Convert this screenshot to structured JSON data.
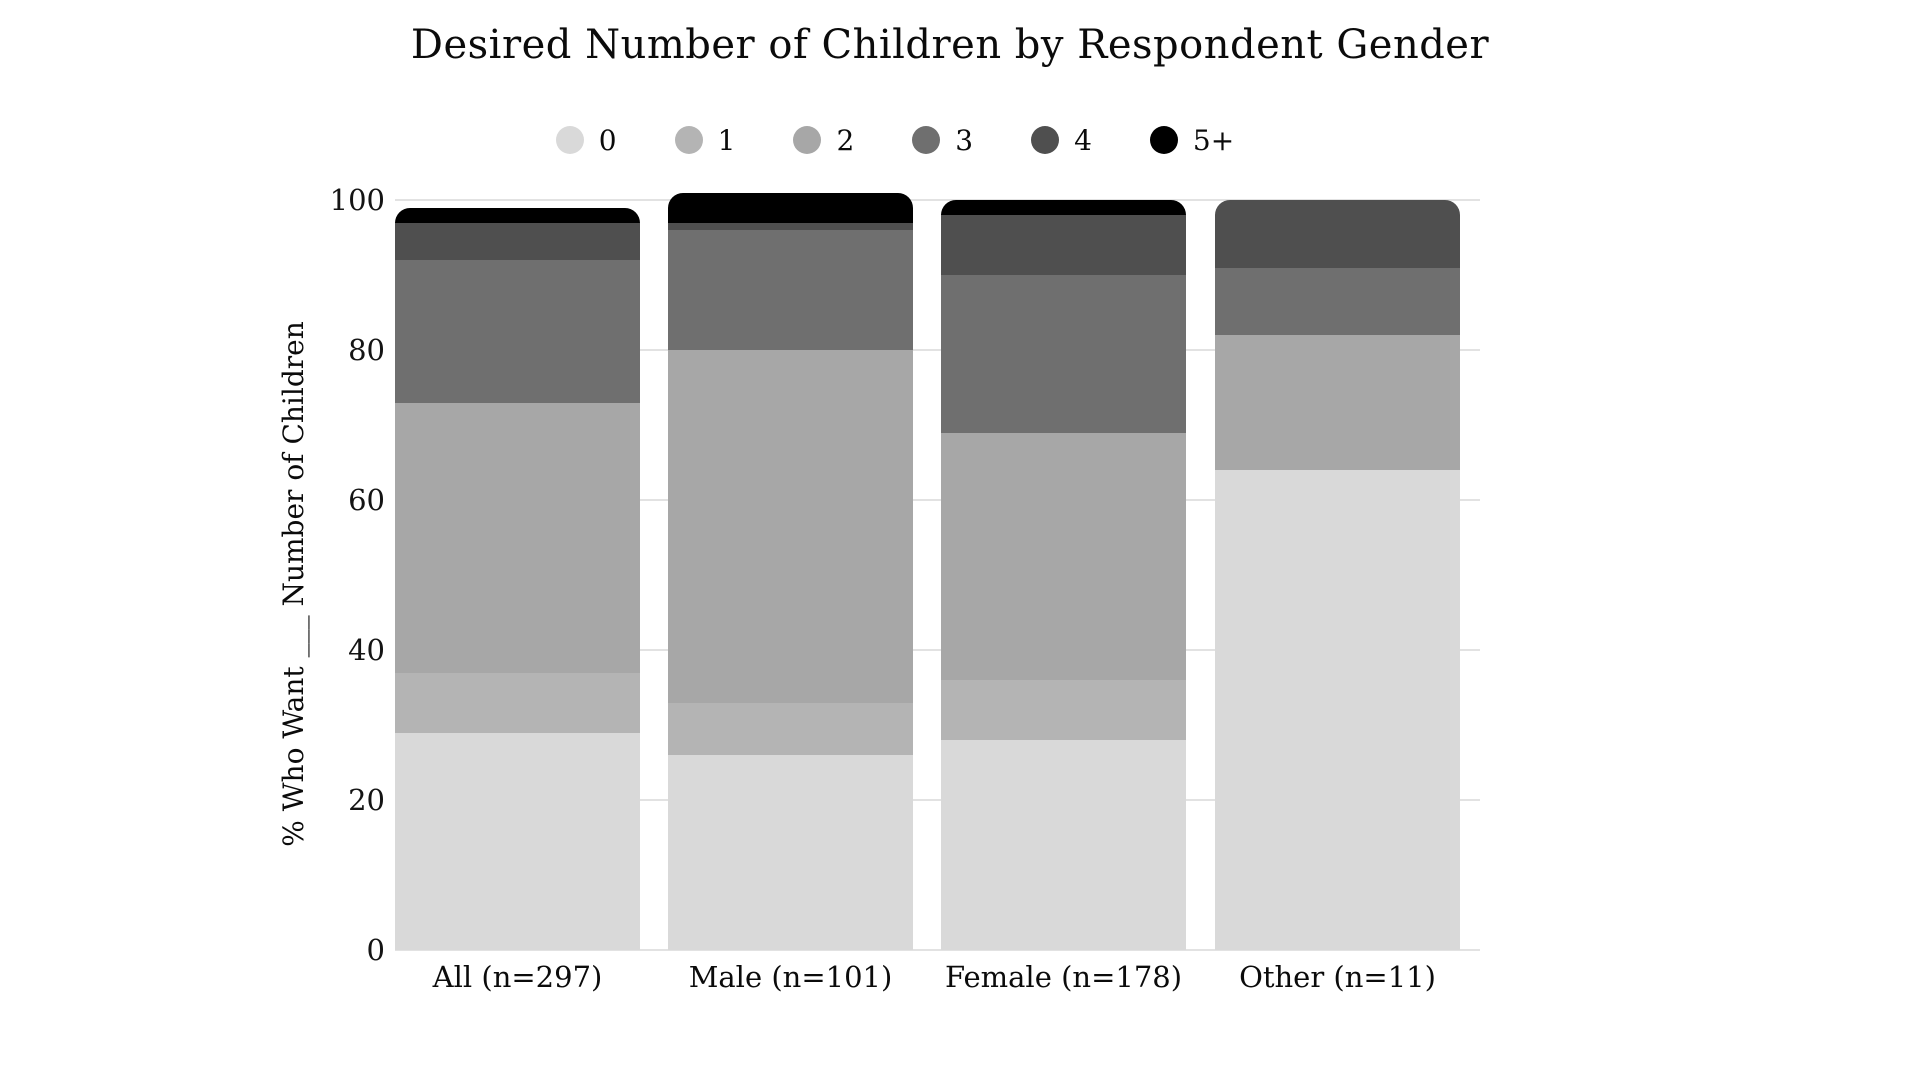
{
  "page": {
    "background": "#ffffff",
    "title": "Desired Number of Children by Respondent Gender"
  },
  "chart_data": {
    "type": "bar",
    "subtype": "stacked-vertical-percent",
    "title": "Desired Number of Children by Respondent Gender",
    "xlabel": "",
    "ylabel": "% Who Want ___ Number of Children",
    "ylim": [
      0,
      100
    ],
    "yticks": [
      0,
      20,
      40,
      60,
      80,
      100
    ],
    "grid": "horizontal",
    "legend_position": "top-center",
    "gridline_color": "#e2e2e2",
    "categories": [
      "All (n=297)",
      "Male (n=101)",
      "Female (n=178)",
      "Other (n=11)"
    ],
    "series": [
      {
        "name": "0",
        "color": "#d9d9d9",
        "values": [
          29,
          26,
          28,
          64
        ]
      },
      {
        "name": "1",
        "color": "#b4b4b4",
        "values": [
          8,
          7,
          8,
          0
        ]
      },
      {
        "name": "2",
        "color": "#a7a7a7",
        "values": [
          36,
          47,
          33,
          18
        ]
      },
      {
        "name": "3",
        "color": "#6f6f6f",
        "values": [
          19,
          16,
          21,
          9
        ]
      },
      {
        "name": "4",
        "color": "#4f4f4f",
        "values": [
          5,
          1,
          8,
          9
        ]
      },
      {
        "name": "5+",
        "color": "#000000",
        "values": [
          2,
          4,
          2,
          0
        ]
      }
    ],
    "stack_totals": [
      99,
      101,
      100,
      100
    ]
  }
}
